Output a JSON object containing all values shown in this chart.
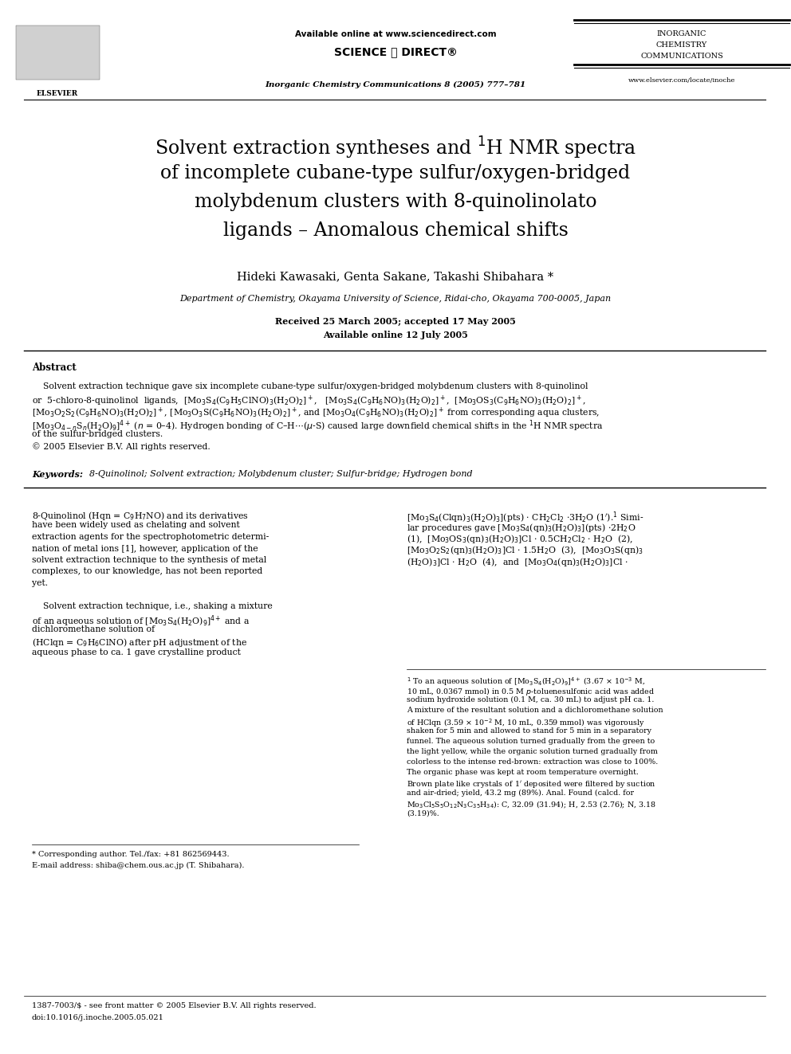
{
  "page_width": 9.92,
  "page_height": 13.23,
  "dpi": 100,
  "bg_color": "#ffffff",
  "header": {
    "available_online": "Available online at www.sciencedirect.com",
    "science_direct": "SCIENCE ⓓ DIRECT®",
    "journal_cite": "Inorganic Chemistry Communications 8 (2005) 777–781",
    "journal_name_line1": "INORGANIC",
    "journal_name_line2": "CHEMISTRY",
    "journal_name_line3": "COMMUNICATIONS",
    "website": "www.elsevier.com/locate/inoche"
  },
  "title_lines": [
    "Solvent extraction syntheses and $^1$H NMR spectra",
    "of incomplete cubane-type sulfur/oxygen-bridged",
    "molybdenum clusters with 8-quinolinolato",
    "ligands – Anomalous chemical shifts"
  ],
  "authors": "Hideki Kawasaki, Genta Sakane, Takashi Shibahara *",
  "affiliation": "Department of Chemistry, Okayama University of Science, Ridai-cho, Okayama 700-0005, Japan",
  "received": "Received 25 March 2005; accepted 17 May 2005",
  "available": "Available online 12 July 2005",
  "abstract_title": "Abstract",
  "keywords_label": "Keywords:",
  "keywords_body": "  8-Quinolinol; Solvent extraction; Molybdenum cluster; Sulfur-bridge; Hydrogen bond",
  "footnote_star1": "* Corresponding author. Tel./fax: +81 862569443.",
  "footnote_star2": "E-mail address: shiba@chem.ous.ac.jp (T. Shibahara).",
  "footnote_bottom1": "1387-7003/$ - see front matter © 2005 Elsevier B.V. All rights reserved.",
  "footnote_bottom2": "doi:10.1016/j.inoche.2005.05.021"
}
